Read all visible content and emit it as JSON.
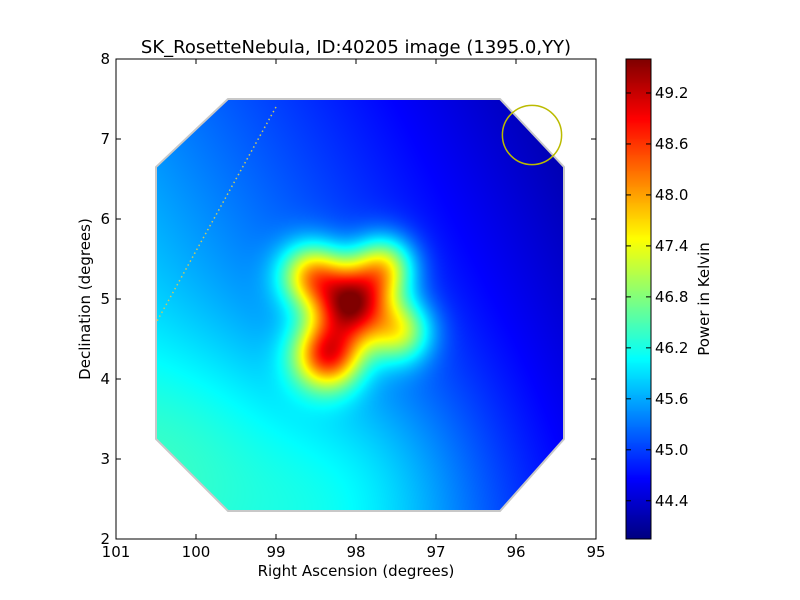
{
  "chart_data": {
    "type": "heatmap",
    "title": "SK_RosetteNebula, ID:40205 image (1395.0,YY)",
    "xlabel": "Right Ascension (degrees)",
    "ylabel": "Declination (degrees)",
    "xlim": [
      101,
      95
    ],
    "ylim": [
      2,
      8
    ],
    "x_ticks": [
      101,
      100,
      99,
      98,
      97,
      96,
      95
    ],
    "y_ticks": [
      2,
      3,
      4,
      5,
      6,
      7,
      8
    ],
    "x_tick_labels": [
      "101",
      "100",
      "99",
      "98",
      "97",
      "96",
      "95"
    ],
    "y_tick_labels": [
      "2",
      "3",
      "4",
      "5",
      "6",
      "7",
      "8"
    ],
    "colorbar": {
      "label": "Power in Kelvin",
      "range": [
        43.95,
        49.6
      ],
      "ticks": [
        44.4,
        45.0,
        45.6,
        46.2,
        46.8,
        47.4,
        48.0,
        48.6,
        49.2
      ],
      "tick_labels": [
        "44.4",
        "45.0",
        "45.6",
        "46.2",
        "46.8",
        "47.4",
        "48.0",
        "48.6",
        "49.2"
      ],
      "colormap": "jet"
    },
    "coverage_polygon": [
      [
        99.6,
        7.5
      ],
      [
        96.2,
        7.5
      ],
      [
        95.4,
        6.65
      ],
      [
        95.4,
        3.25
      ],
      [
        96.2,
        2.35
      ],
      [
        99.6,
        2.35
      ],
      [
        100.5,
        3.25
      ],
      [
        100.5,
        6.65
      ]
    ],
    "background_gradient": {
      "corners": {
        "top_left": 45.4,
        "top_right": 44.0,
        "bottom_left": 46.4,
        "bottom_right": 44.6
      },
      "extra_lobes": [
        {
          "ra": 98.0,
          "dec": 2.6,
          "sigma": 1.1,
          "value": 0.6
        },
        {
          "ra": 100.1,
          "dec": 3.3,
          "sigma": 0.9,
          "value": 0.3
        }
      ]
    },
    "sources": [
      {
        "ra": 98.05,
        "dec": 4.95,
        "sigma": 0.32,
        "peak": 3.9
      },
      {
        "ra": 98.35,
        "dec": 4.3,
        "sigma": 0.3,
        "peak": 3.2
      },
      {
        "ra": 98.55,
        "dec": 5.3,
        "sigma": 0.28,
        "peak": 2.4
      },
      {
        "ra": 97.65,
        "dec": 5.4,
        "sigma": 0.27,
        "peak": 2.2
      },
      {
        "ra": 97.45,
        "dec": 4.6,
        "sigma": 0.28,
        "peak": 2.0
      }
    ],
    "beam_circle": {
      "ra": 95.8,
      "dec": 7.05,
      "radius_deg": 0.37,
      "color": "#bbbb00"
    },
    "dotted_track": {
      "from": [
        99.0,
        7.4
      ],
      "to": [
        100.5,
        4.7
      ],
      "color": "#c8c860"
    }
  }
}
